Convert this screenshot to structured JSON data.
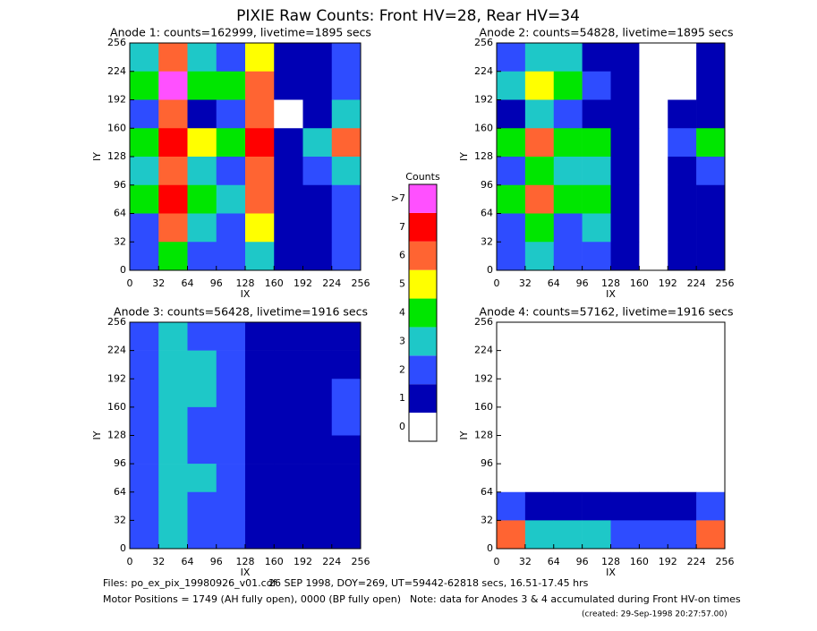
{
  "title": "PIXIE Raw Counts:  Front HV=28, Rear HV=34",
  "chart_data": [
    {
      "type": "heatmap",
      "title": "Anode 1: counts=162999, livetime=1895 secs",
      "x_label": "IX",
      "y_label": "IY",
      "xlim": [
        0,
        256
      ],
      "ylim": [
        0,
        256
      ],
      "xticks": [
        0,
        32,
        64,
        96,
        128,
        160,
        192,
        224,
        256
      ],
      "yticks": [
        0,
        32,
        64,
        96,
        128,
        160,
        192,
        224,
        256
      ],
      "z": [
        [
          3,
          6,
          3,
          2,
          5,
          1,
          1,
          2
        ],
        [
          4,
          8,
          4,
          4,
          6,
          1,
          1,
          2
        ],
        [
          2,
          6,
          1,
          2,
          6,
          0,
          1,
          3
        ],
        [
          4,
          7,
          5,
          4,
          7,
          1,
          3,
          6
        ],
        [
          3,
          6,
          3,
          2,
          6,
          1,
          2,
          3
        ],
        [
          4,
          7,
          4,
          3,
          6,
          1,
          1,
          2
        ],
        [
          2,
          6,
          3,
          2,
          5,
          1,
          1,
          2
        ],
        [
          2,
          4,
          2,
          2,
          3,
          1,
          1,
          2
        ]
      ]
    },
    {
      "type": "heatmap",
      "title": "Anode 2: counts=54828, livetime=1895 secs",
      "x_label": "IX",
      "y_label": "IY",
      "xlim": [
        0,
        256
      ],
      "ylim": [
        0,
        256
      ],
      "xticks": [
        0,
        32,
        64,
        96,
        128,
        160,
        192,
        224,
        256
      ],
      "yticks": [
        0,
        32,
        64,
        96,
        128,
        160,
        192,
        224,
        256
      ],
      "z": [
        [
          2,
          3,
          3,
          1,
          1,
          0,
          0,
          1
        ],
        [
          3,
          5,
          4,
          2,
          1,
          0,
          0,
          1
        ],
        [
          1,
          3,
          2,
          1,
          1,
          0,
          1,
          1
        ],
        [
          4,
          6,
          4,
          4,
          1,
          0,
          2,
          4
        ],
        [
          2,
          4,
          3,
          3,
          1,
          0,
          1,
          2
        ],
        [
          4,
          6,
          4,
          4,
          1,
          0,
          1,
          1
        ],
        [
          2,
          4,
          2,
          3,
          1,
          0,
          1,
          1
        ],
        [
          2,
          3,
          2,
          2,
          1,
          0,
          1,
          1
        ]
      ]
    },
    {
      "type": "heatmap",
      "title": "Anode 3: counts=56428, livetime=1916 secs",
      "x_label": "IX",
      "y_label": "IY",
      "xlim": [
        0,
        256
      ],
      "ylim": [
        0,
        256
      ],
      "xticks": [
        0,
        32,
        64,
        96,
        128,
        160,
        192,
        224,
        256
      ],
      "yticks": [
        0,
        32,
        64,
        96,
        128,
        160,
        192,
        224,
        256
      ],
      "z": [
        [
          2,
          3,
          2,
          2,
          1,
          1,
          1,
          1
        ],
        [
          2,
          3,
          3,
          2,
          1,
          1,
          1,
          1
        ],
        [
          2,
          3,
          3,
          2,
          1,
          1,
          1,
          2
        ],
        [
          2,
          3,
          2,
          2,
          1,
          1,
          1,
          2
        ],
        [
          2,
          3,
          2,
          2,
          1,
          1,
          1,
          1
        ],
        [
          2,
          3,
          3,
          2,
          1,
          1,
          1,
          1
        ],
        [
          2,
          3,
          2,
          2,
          1,
          1,
          1,
          1
        ],
        [
          2,
          3,
          2,
          2,
          1,
          1,
          1,
          1
        ]
      ]
    },
    {
      "type": "heatmap",
      "title": "Anode 4: counts=57162, livetime=1916 secs",
      "x_label": "IX",
      "y_label": "IY",
      "xlim": [
        0,
        256
      ],
      "ylim": [
        0,
        256
      ],
      "xticks": [
        0,
        32,
        64,
        96,
        128,
        160,
        192,
        224,
        256
      ],
      "yticks": [
        0,
        32,
        64,
        96,
        128,
        160,
        192,
        224,
        256
      ],
      "z": [
        [
          0,
          0,
          0,
          0,
          0,
          0,
          0,
          0
        ],
        [
          0,
          0,
          0,
          0,
          0,
          0,
          0,
          0
        ],
        [
          0,
          0,
          0,
          0,
          0,
          0,
          0,
          0
        ],
        [
          0,
          0,
          0,
          0,
          0,
          0,
          0,
          0
        ],
        [
          0,
          0,
          0,
          0,
          0,
          0,
          0,
          0
        ],
        [
          0,
          0,
          0,
          0,
          0,
          0,
          0,
          0
        ],
        [
          2,
          1,
          1,
          1,
          1,
          1,
          1,
          2
        ],
        [
          6,
          3,
          3,
          3,
          2,
          2,
          2,
          6
        ]
      ]
    }
  ],
  "colorbar": {
    "title": "Counts",
    "levels": [
      0,
      1,
      2,
      3,
      4,
      5,
      6,
      7,
      {
        "value": 8,
        "label": ">7"
      }
    ],
    "colors": [
      "#ffffff",
      "#0000b4",
      "#2e4cff",
      "#1ec8c8",
      "#00e600",
      "#ffff00",
      "#ff6432",
      "#ff0000",
      "#ff50ff"
    ]
  },
  "footer": {
    "files": "Files: po_ex_pix_19980926_v01.cdf",
    "date": "26 SEP 1998, DOY=269, UT=59442-62818 secs, 16.51-17.45 hrs",
    "motor": "Motor Positions = 1749 (AH fully open), 0000 (BP fully open)",
    "note": "Note: data for Anodes 3 & 4 accumulated during Front HV-on times",
    "created": "(created: 29-Sep-1998 20:27:57.00)"
  }
}
